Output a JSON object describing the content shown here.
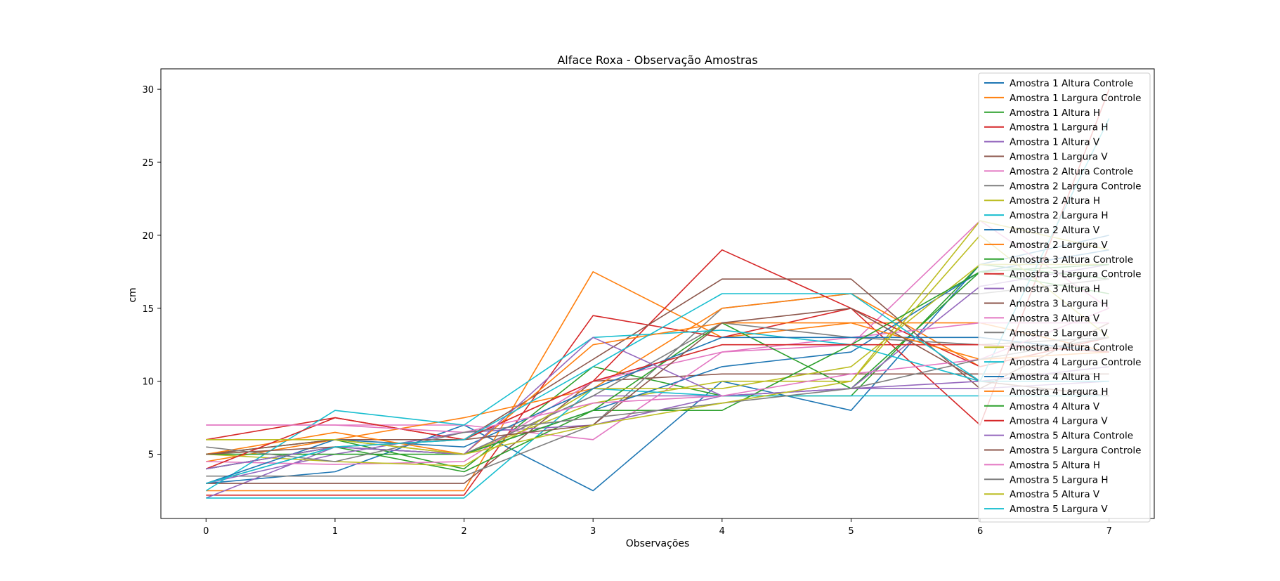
{
  "chart_data": {
    "type": "line",
    "title": "Alface Roxa - Observação Amostras",
    "xlabel": "Observações",
    "ylabel": "cm",
    "x": [
      0,
      1,
      2,
      3,
      4,
      5,
      6,
      7
    ],
    "xlim": [
      -0.35,
      7.35
    ],
    "ylim": [
      0.6,
      31.4
    ],
    "xticks": [
      0,
      1,
      2,
      3,
      4,
      5,
      6,
      7
    ],
    "yticks": [
      5,
      10,
      15,
      20,
      25,
      30
    ],
    "grid": false,
    "legend_position": "upper right, overlapping plot",
    "series": [
      {
        "name": "Amostra 1 Altura Controle",
        "color": "#1f77b4",
        "values": [
          3,
          3.8,
          7,
          2.5,
          10,
          8,
          18,
          20
        ]
      },
      {
        "name": "Amostra 1 Largura Controle",
        "color": "#ff7f0e",
        "values": [
          2.5,
          2.5,
          2.5,
          17.5,
          13,
          14,
          14,
          12
        ]
      },
      {
        "name": "Amostra 1 Altura H",
        "color": "#2ca02c",
        "values": [
          5,
          6,
          4,
          11,
          9,
          9,
          18,
          17
        ]
      },
      {
        "name": "Amostra 1 Largura H",
        "color": "#d62728",
        "values": [
          2.2,
          2.2,
          2.2,
          14.5,
          13,
          15,
          7,
          30
        ]
      },
      {
        "name": "Amostra 1 Altura V",
        "color": "#9467bd",
        "values": [
          2,
          5.5,
          5,
          9,
          9,
          9.5,
          9.5,
          10
        ]
      },
      {
        "name": "Amostra 1 Largura V",
        "color": "#8c564b",
        "values": [
          3,
          3,
          3,
          10,
          10.5,
          10.5,
          10.5,
          10.5
        ]
      },
      {
        "name": "Amostra 2 Altura Controle",
        "color": "#e377c2",
        "values": [
          7,
          7,
          7,
          6,
          12,
          12.5,
          21,
          15
        ]
      },
      {
        "name": "Amostra 2 Largura Controle",
        "color": "#7f7f7f",
        "values": [
          3.5,
          3.5,
          3.5,
          7,
          15,
          16,
          16,
          17
        ]
      },
      {
        "name": "Amostra 2 Altura H",
        "color": "#bcbd22",
        "values": [
          6,
          6,
          5,
          8.5,
          10,
          10,
          21,
          19
        ]
      },
      {
        "name": "Amostra 2 Largura H",
        "color": "#17becf",
        "values": [
          2,
          2,
          2,
          9.5,
          9,
          9,
          9,
          9
        ]
      },
      {
        "name": "Amostra 2 Altura V",
        "color": "#1f77b4",
        "values": [
          4,
          5.5,
          5,
          8,
          11,
          12,
          17.5,
          19
        ]
      },
      {
        "name": "Amostra 2 Largura V",
        "color": "#ff7f0e",
        "values": [
          4.5,
          6,
          7.5,
          9.5,
          15,
          16,
          11,
          13
        ]
      },
      {
        "name": "Amostra 3 Altura Controle",
        "color": "#2ca02c",
        "values": [
          4,
          5.5,
          3.8,
          8,
          14,
          9.5,
          17.5,
          16
        ]
      },
      {
        "name": "Amostra 3 Largura Controle",
        "color": "#d62728",
        "values": [
          6,
          7.5,
          6,
          10,
          19,
          15,
          11,
          13
        ]
      },
      {
        "name": "Amostra 3 Altura H",
        "color": "#9467bd",
        "values": [
          3,
          5,
          6.5,
          7,
          9,
          9.5,
          16.5,
          18
        ]
      },
      {
        "name": "Amostra 3 Largura H",
        "color": "#8c564b",
        "values": [
          5,
          6,
          6,
          11.5,
          17,
          17,
          9.5,
          14
        ]
      },
      {
        "name": "Amostra 3 Altura V",
        "color": "#e377c2",
        "values": [
          4.5,
          4.3,
          4.5,
          10,
          12,
          13,
          14,
          14
        ]
      },
      {
        "name": "Amostra 3 Largura V",
        "color": "#7f7f7f",
        "values": [
          3,
          5.5,
          5,
          9,
          14,
          13,
          12.5,
          13
        ]
      },
      {
        "name": "Amostra 4 Altura Controle",
        "color": "#bcbd22",
        "values": [
          5,
          4.5,
          4.2,
          9.5,
          9.5,
          11,
          18,
          18
        ]
      },
      {
        "name": "Amostra 4 Largura Controle",
        "color": "#17becf",
        "values": [
          2.5,
          8,
          7,
          13,
          13.5,
          12.5,
          10,
          28
        ]
      },
      {
        "name": "Amostra 4 Altura H",
        "color": "#1f77b4",
        "values": [
          3,
          6,
          5.5,
          9.5,
          13,
          13,
          13,
          12
        ]
      },
      {
        "name": "Amostra 4 Largura H",
        "color": "#ff7f0e",
        "values": [
          5,
          6.5,
          5,
          12.5,
          14,
          14,
          11.5,
          12
        ]
      },
      {
        "name": "Amostra 4 Altura V",
        "color": "#2ca02c",
        "values": [
          5,
          5,
          5,
          8,
          8,
          12.5,
          17.5,
          18
        ]
      },
      {
        "name": "Amostra 4 Largura V",
        "color": "#d62728",
        "values": [
          4,
          7.5,
          6,
          10,
          12.5,
          12.5,
          12.5,
          12
        ]
      },
      {
        "name": "Amostra 5 Altura Controle",
        "color": "#9467bd",
        "values": [
          4,
          5.5,
          5,
          13,
          9,
          9.5,
          10,
          11
        ]
      },
      {
        "name": "Amostra 5 Largura Controle",
        "color": "#8c564b",
        "values": [
          5,
          5.5,
          6,
          7,
          14,
          15,
          10,
          9
        ]
      },
      {
        "name": "Amostra 5 Altura H",
        "color": "#e377c2",
        "values": [
          7,
          7,
          6.5,
          8.5,
          9,
          10.5,
          11.5,
          15
        ]
      },
      {
        "name": "Amostra 5 Largura H",
        "color": "#7f7f7f",
        "values": [
          5.5,
          4.5,
          6.5,
          7.5,
          8.5,
          9.5,
          11.5,
          13
        ]
      },
      {
        "name": "Amostra 5 Altura V",
        "color": "#bcbd22",
        "values": [
          6,
          6,
          5,
          7,
          8.5,
          10,
          20,
          13
        ]
      },
      {
        "name": "Amostra 5 Largura V",
        "color": "#17becf",
        "values": [
          3,
          5.5,
          6,
          11,
          16,
          16,
          10,
          10
        ]
      }
    ]
  }
}
